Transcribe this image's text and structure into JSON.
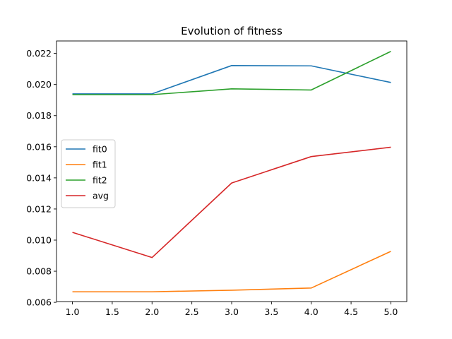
{
  "chart_data": {
    "type": "line",
    "title": "Evolution of fitness",
    "xlabel": "",
    "ylabel": "",
    "x": [
      1.0,
      2.0,
      3.0,
      4.0,
      5.0
    ],
    "xlim": [
      0.8,
      5.2
    ],
    "ylim": [
      0.00605,
      0.0228
    ],
    "xticks": [
      1.0,
      1.5,
      2.0,
      2.5,
      3.0,
      3.5,
      4.0,
      4.5,
      5.0
    ],
    "xtick_labels": [
      "1.0",
      "1.5",
      "2.0",
      "2.5",
      "3.0",
      "3.5",
      "4.0",
      "4.5",
      "5.0"
    ],
    "yticks": [
      0.006,
      0.008,
      0.01,
      0.012,
      0.014,
      0.016,
      0.018,
      0.02,
      0.022
    ],
    "ytick_labels": [
      "0.006",
      "0.008",
      "0.010",
      "0.012",
      "0.014",
      "0.016",
      "0.018",
      "0.020",
      "0.022"
    ],
    "grid": false,
    "legend_position": "center-left",
    "series": [
      {
        "name": "fit0",
        "color": "#1f77b4",
        "values": [
          0.0194,
          0.0194,
          0.02122,
          0.0212,
          0.02013
        ]
      },
      {
        "name": "fit1",
        "color": "#ff7f0e",
        "values": [
          0.00668,
          0.00668,
          0.00678,
          0.00692,
          0.00928
        ]
      },
      {
        "name": "fit2",
        "color": "#2ca02c",
        "values": [
          0.01935,
          0.01935,
          0.01972,
          0.01965,
          0.02213
        ]
      },
      {
        "name": "avg",
        "color": "#d62728",
        "values": [
          0.0105,
          0.00888,
          0.01367,
          0.01537,
          0.01597
        ]
      }
    ]
  }
}
